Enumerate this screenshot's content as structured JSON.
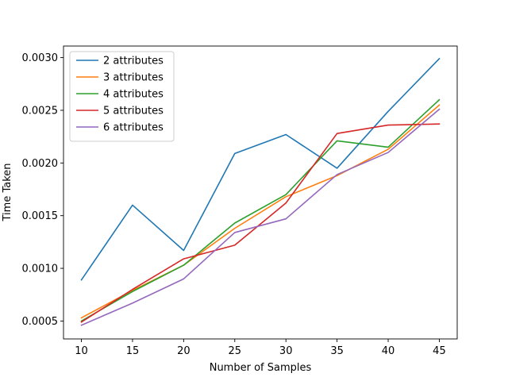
{
  "chart_data": {
    "type": "line",
    "title": "",
    "xlabel": "Number of Samples",
    "ylabel": "Time Taken",
    "x": [
      10,
      15,
      20,
      25,
      30,
      35,
      40,
      45
    ],
    "x_ticks": [
      10,
      15,
      20,
      25,
      30,
      35,
      40,
      45
    ],
    "x_tick_labels": [
      "10",
      "15",
      "20",
      "25",
      "30",
      "35",
      "40",
      "45"
    ],
    "xlim": [
      8.25,
      46.75
    ],
    "y_ticks": [
      0.0005,
      0.001,
      0.0015,
      0.002,
      0.0025,
      0.003
    ],
    "y_tick_labels": [
      "0.0005",
      "0.0010",
      "0.0015",
      "0.0020",
      "0.0025",
      "0.0030"
    ],
    "ylim": [
      0.00033,
      0.00311
    ],
    "grid": false,
    "legend_position": "top-left",
    "series": [
      {
        "name": "2 attributes",
        "color": "#1f77b4",
        "values": [
          0.00089,
          0.0016,
          0.00117,
          0.00209,
          0.00227,
          0.00195,
          0.00249,
          0.00299
        ]
      },
      {
        "name": "3 attributes",
        "color": "#ff7f0e",
        "values": [
          0.00053,
          0.00079,
          0.00103,
          0.00138,
          0.00168,
          0.00188,
          0.00213,
          0.00255
        ]
      },
      {
        "name": "4 attributes",
        "color": "#2ca02c",
        "values": [
          0.0005,
          0.00078,
          0.00103,
          0.00143,
          0.0017,
          0.00221,
          0.00215,
          0.0026
        ]
      },
      {
        "name": "5 attributes",
        "color": "#d62728",
        "values": [
          0.00049,
          0.0008,
          0.00109,
          0.00122,
          0.00162,
          0.00228,
          0.00236,
          0.00237
        ]
      },
      {
        "name": "6 attributes",
        "color": "#9467bd",
        "values": [
          0.00046,
          0.00067,
          0.0009,
          0.00134,
          0.00147,
          0.00189,
          0.0021,
          0.00251
        ]
      }
    ]
  }
}
